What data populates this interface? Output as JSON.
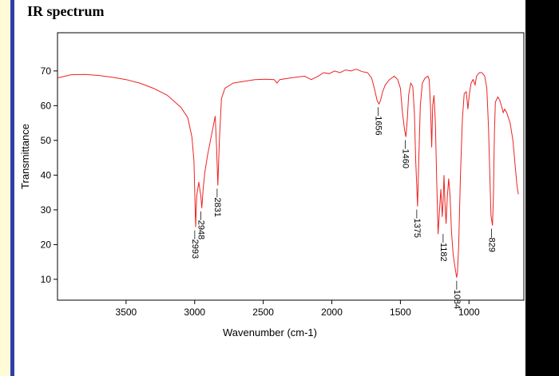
{
  "page": {
    "title": "IR spectrum",
    "colors": {
      "left_stripe_bg": "#fffbd6",
      "left_stripe_border": "#2f3fa8",
      "right_bar": "#000000",
      "spectrum_line": "#ee2222"
    }
  },
  "chart_data": {
    "type": "line",
    "title": "",
    "xlabel": "Wavenumber (cm-1)",
    "ylabel": "Transmittance",
    "xlim": [
      4000,
      600
    ],
    "ylim": [
      4,
      81
    ],
    "x_reversed": true,
    "grid": false,
    "legend": "none",
    "xticks": [
      3500,
      3000,
      2500,
      2000,
      1500,
      1000
    ],
    "yticks": [
      10,
      20,
      30,
      40,
      50,
      60,
      70
    ],
    "series": [
      {
        "points": [
          [
            4000,
            68.0
          ],
          [
            3900,
            68.9
          ],
          [
            3800,
            69.0
          ],
          [
            3700,
            68.7
          ],
          [
            3600,
            68.2
          ],
          [
            3500,
            67.5
          ],
          [
            3400,
            66.5
          ],
          [
            3300,
            65.0
          ],
          [
            3200,
            63.0
          ],
          [
            3100,
            59.5
          ],
          [
            3050,
            56.5
          ],
          [
            3020,
            51.0
          ],
          [
            3005,
            44.0
          ],
          [
            2993,
            25.0
          ],
          [
            2985,
            34.0
          ],
          [
            2970,
            38.0
          ],
          [
            2955,
            34.0
          ],
          [
            2948,
            30.5
          ],
          [
            2938,
            36.0
          ],
          [
            2925,
            41.0
          ],
          [
            2905,
            46.0
          ],
          [
            2890,
            49.0
          ],
          [
            2870,
            53.0
          ],
          [
            2850,
            57.0
          ],
          [
            2840,
            48.0
          ],
          [
            2831,
            37.0
          ],
          [
            2820,
            50.0
          ],
          [
            2805,
            62.0
          ],
          [
            2780,
            65.0
          ],
          [
            2720,
            66.5
          ],
          [
            2640,
            67.0
          ],
          [
            2560,
            67.5
          ],
          [
            2480,
            67.6
          ],
          [
            2420,
            67.5
          ],
          [
            2400,
            66.5
          ],
          [
            2380,
            67.5
          ],
          [
            2300,
            68.0
          ],
          [
            2200,
            68.5
          ],
          [
            2150,
            67.5
          ],
          [
            2100,
            68.5
          ],
          [
            2060,
            69.5
          ],
          [
            2020,
            69.2
          ],
          [
            1980,
            70.0
          ],
          [
            1940,
            69.5
          ],
          [
            1900,
            70.3
          ],
          [
            1860,
            70.0
          ],
          [
            1820,
            70.5
          ],
          [
            1780,
            69.8
          ],
          [
            1740,
            69.5
          ],
          [
            1710,
            68.0
          ],
          [
            1690,
            65.0
          ],
          [
            1670,
            61.5
          ],
          [
            1656,
            60.5
          ],
          [
            1645,
            61.5
          ],
          [
            1630,
            64.0
          ],
          [
            1610,
            66.0
          ],
          [
            1580,
            67.5
          ],
          [
            1545,
            68.5
          ],
          [
            1520,
            67.5
          ],
          [
            1500,
            65.0
          ],
          [
            1485,
            58.0
          ],
          [
            1470,
            53.0
          ],
          [
            1460,
            51.0
          ],
          [
            1450,
            56.0
          ],
          [
            1440,
            63.0
          ],
          [
            1425,
            66.5
          ],
          [
            1410,
            65.5
          ],
          [
            1398,
            58.0
          ],
          [
            1388,
            44.0
          ],
          [
            1375,
            31.0
          ],
          [
            1365,
            46.0
          ],
          [
            1355,
            60.0
          ],
          [
            1340,
            66.5
          ],
          [
            1320,
            68.0
          ],
          [
            1300,
            68.5
          ],
          [
            1290,
            67.5
          ],
          [
            1280,
            59.0
          ],
          [
            1272,
            48.0
          ],
          [
            1265,
            60.0
          ],
          [
            1255,
            63.0
          ],
          [
            1245,
            55.0
          ],
          [
            1235,
            38.0
          ],
          [
            1225,
            23.0
          ],
          [
            1215,
            30.0
          ],
          [
            1205,
            36.0
          ],
          [
            1195,
            28.0
          ],
          [
            1188,
            33.0
          ],
          [
            1182,
            40.0
          ],
          [
            1175,
            32.0
          ],
          [
            1167,
            26.0
          ],
          [
            1158,
            34.0
          ],
          [
            1148,
            39.0
          ],
          [
            1138,
            34.0
          ],
          [
            1128,
            24.0
          ],
          [
            1115,
            17.0
          ],
          [
            1100,
            13.0
          ],
          [
            1090,
            10.5
          ],
          [
            1084,
            12.0
          ],
          [
            1075,
            20.0
          ],
          [
            1062,
            40.0
          ],
          [
            1048,
            56.0
          ],
          [
            1035,
            63.5
          ],
          [
            1020,
            64.0
          ],
          [
            1008,
            59.0
          ],
          [
            998,
            63.0
          ],
          [
            985,
            66.5
          ],
          [
            970,
            67.5
          ],
          [
            955,
            66.0
          ],
          [
            945,
            68.5
          ],
          [
            925,
            69.5
          ],
          [
            905,
            69.5
          ],
          [
            885,
            68.5
          ],
          [
            870,
            65.0
          ],
          [
            858,
            54.0
          ],
          [
            848,
            40.0
          ],
          [
            840,
            28.5
          ],
          [
            829,
            25.5
          ],
          [
            822,
            34.0
          ],
          [
            815,
            52.0
          ],
          [
            808,
            61.0
          ],
          [
            790,
            62.5
          ],
          [
            775,
            61.5
          ],
          [
            760,
            59.5
          ],
          [
            750,
            58.0
          ],
          [
            740,
            59.0
          ],
          [
            725,
            58.0
          ],
          [
            700,
            55.0
          ],
          [
            680,
            50.0
          ],
          [
            662,
            42.0
          ],
          [
            650,
            37.0
          ],
          [
            640,
            34.5
          ]
        ]
      }
    ],
    "annotations": [
      {
        "label": "2993",
        "x": 2993,
        "y": 25.0
      },
      {
        "label": "2948",
        "x": 2948,
        "y": 30.5
      },
      {
        "label": "2831",
        "x": 2831,
        "y": 37.0
      },
      {
        "label": "1656",
        "x": 1656,
        "y": 60.5
      },
      {
        "label": "1460",
        "x": 1460,
        "y": 51.0
      },
      {
        "label": "1375",
        "x": 1375,
        "y": 31.0
      },
      {
        "label": "1182",
        "x": 1182,
        "y": 24.0
      },
      {
        "label": "1084",
        "x": 1084,
        "y": 10.5
      },
      {
        "label": "829",
        "x": 829,
        "y": 25.5
      }
    ]
  }
}
